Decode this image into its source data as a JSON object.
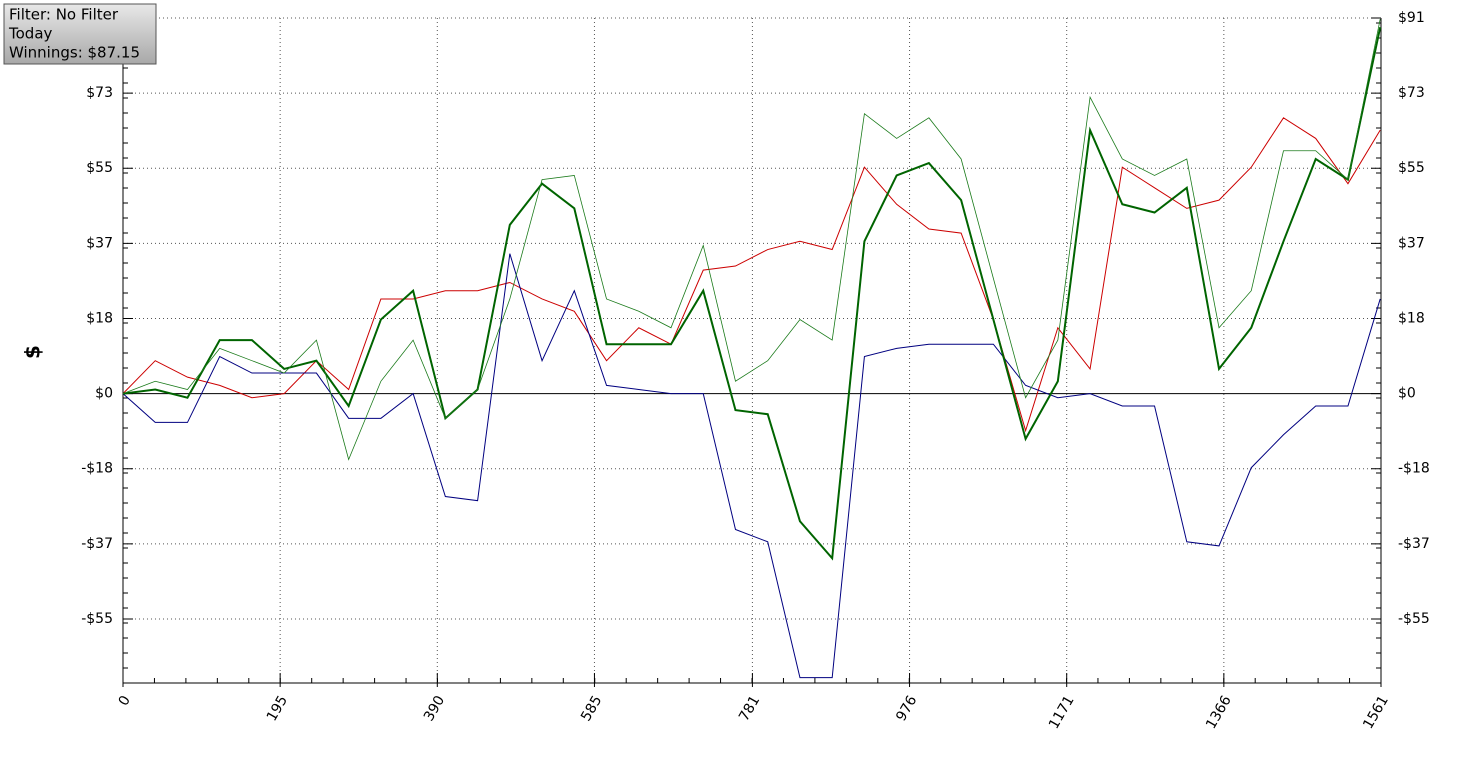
{
  "chart_data": {
    "type": "line",
    "info_box": [
      "Filter: No Filter",
      "Today",
      "Winnings: $87.15"
    ],
    "y_label": "$",
    "x": [
      0,
      40,
      80,
      120,
      160,
      200,
      240,
      280,
      320,
      360,
      400,
      440,
      480,
      520,
      560,
      600,
      640,
      680,
      720,
      760,
      800,
      840,
      880,
      920,
      960,
      1000,
      1040,
      1080,
      1120,
      1160,
      1200,
      1240,
      1280,
      1320,
      1360,
      1400,
      1440,
      1480,
      1520,
      1560
    ],
    "series": [
      {
        "color": "#cc0000",
        "width": 1,
        "values": [
          0,
          8,
          4,
          2,
          -1,
          0,
          8,
          1,
          23,
          23,
          25,
          25,
          27,
          23,
          20,
          8,
          16,
          12,
          30,
          31,
          35,
          37,
          35,
          55,
          46,
          40,
          39,
          18,
          -9,
          16,
          6,
          55,
          50,
          45,
          47,
          55,
          67,
          62,
          51,
          64
        ]
      },
      {
        "color": "#000080",
        "width": 1,
        "values": [
          0,
          -7,
          -7,
          9,
          5,
          5,
          5,
          -6,
          -6,
          0,
          -25,
          -26,
          34,
          8,
          25,
          2,
          1,
          0,
          0,
          -33,
          -36,
          -69,
          -69,
          9,
          11,
          12,
          12,
          12,
          2,
          -1,
          0,
          -3,
          -3,
          -36,
          -37,
          -18,
          -10,
          -3,
          -3,
          23
        ]
      },
      {
        "color": "#006400",
        "width": 2,
        "values": [
          0,
          1,
          -1,
          13,
          13,
          6,
          8,
          -3,
          18,
          25,
          -6,
          1,
          41,
          51,
          45,
          12,
          12,
          12,
          25,
          -4,
          -5,
          -31,
          -40,
          37,
          53,
          56,
          47,
          18,
          -11,
          3,
          64,
          46,
          44,
          50,
          6,
          16,
          37,
          57,
          52,
          89
        ]
      },
      {
        "color": "#1a7a1a",
        "width": 0.8,
        "values": [
          0,
          3,
          1,
          11,
          8,
          5,
          13,
          -16,
          3,
          13,
          -6,
          1,
          23,
          52,
          53,
          23,
          20,
          16,
          36,
          3,
          8,
          18,
          13,
          68,
          62,
          67,
          57,
          28,
          -1,
          13,
          72,
          57,
          53,
          57,
          16,
          25,
          59,
          59,
          52,
          91
        ]
      }
    ],
    "xlim": [
      0,
      1561
    ],
    "xticks": [
      0,
      195,
      390,
      585,
      781,
      976,
      1171,
      1366,
      1561
    ],
    "ylim": [
      -70.3,
      91.25
    ],
    "yticks": [
      {
        "value": -54.75,
        "label": "-$55"
      },
      {
        "value": -36.5,
        "label": "-$37"
      },
      {
        "value": -18.25,
        "label": "-$18"
      },
      {
        "value": 0,
        "label": "$0"
      },
      {
        "value": 18.25,
        "label": "$18"
      },
      {
        "value": 36.5,
        "label": "$37"
      },
      {
        "value": 54.75,
        "label": "$55"
      },
      {
        "value": 73,
        "label": "$73"
      },
      {
        "value": 91.25,
        "label": "$91"
      }
    ],
    "grid": true
  }
}
